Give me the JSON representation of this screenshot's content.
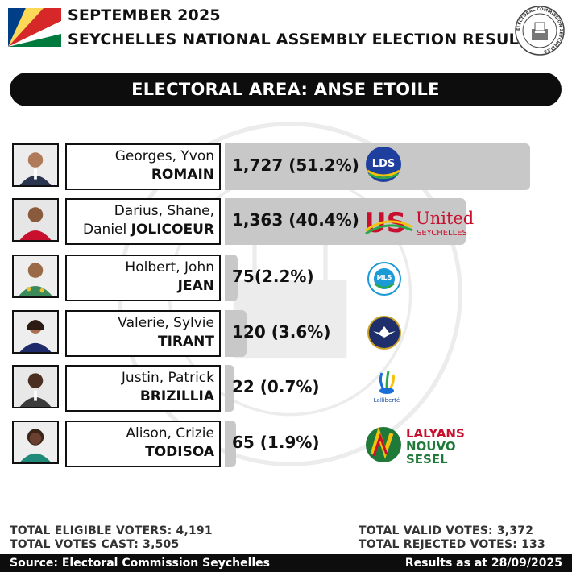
{
  "header": {
    "line1": "SEPTEMBER 2025",
    "line2": "SEYCHELLES NATIONAL ASSEMBLY ELECTION RESULTS",
    "seal_text": "ELECTORAL COMMISSION SEYCHELLES"
  },
  "banner": {
    "title": "ELECTORAL AREA: ANSE ETOILE"
  },
  "candidates": [
    {
      "given": "Georges, Yvon",
      "surname": "ROMAIN",
      "result": "1,727 (51.2%)",
      "votes": 1727,
      "percent": 51.2,
      "party_logo": "LDS"
    },
    {
      "given": "Darius, Shane,",
      "given_inline": "Daniel",
      "surname": "JOLICOEUR",
      "result": "1,363 (40.4%)",
      "votes": 1363,
      "percent": 40.4,
      "party_logo_line1": "United",
      "party_logo_line2": "SEYCHELLES"
    },
    {
      "given": "Holbert, John",
      "surname": "JEAN",
      "result": "75(2.2%)",
      "votes": 75,
      "percent": 2.2,
      "party_logo": "MLS"
    },
    {
      "given": "Valerie, Sylvie",
      "surname": "TIRANT",
      "result": "120 (3.6%)",
      "votes": 120,
      "percent": 3.6,
      "party_logo": "eagle-icon"
    },
    {
      "given": "Justin, Patrick",
      "surname": "BRIZILLIA",
      "result": "22 (0.7%)",
      "votes": 22,
      "percent": 0.7,
      "party_logo": "Lalliberté"
    },
    {
      "given": "Alison, Crizie",
      "surname": "TODISOA",
      "result": "65 (1.9%)",
      "votes": 65,
      "percent": 1.9,
      "party_logo_line1": "LALYANS",
      "party_logo_line2": "NOUVO",
      "party_logo_line3": "SESEL"
    }
  ],
  "stats": {
    "eligible": "TOTAL ELIGIBLE VOTERS: 4,191",
    "cast": "TOTAL VOTES CAST: 3,505",
    "valid": "TOTAL VALID VOTES: 3,372",
    "rejected": "TOTAL REJECTED VOTES: 133"
  },
  "footer": {
    "source": "Source: Electoral Commission Seychelles",
    "as_at": "Results as at 28/09/2025"
  },
  "colors": {
    "bar": "#c8c8c8",
    "banner": "#0d0d0d",
    "lds_blue": "#1f3f9e",
    "us_red": "#c8102e"
  },
  "chart_data": {
    "type": "bar",
    "orientation": "horizontal",
    "categories": [
      "ROMAIN",
      "JOLICOEUR",
      "JEAN",
      "TIRANT",
      "BRIZILLIA",
      "TODISOA"
    ],
    "values": [
      1727,
      1363,
      75,
      120,
      22,
      65
    ],
    "percentages": [
      51.2,
      40.4,
      2.2,
      3.6,
      0.7,
      1.9
    ],
    "title": "ELECTORAL AREA: ANSE ETOILE"
  }
}
